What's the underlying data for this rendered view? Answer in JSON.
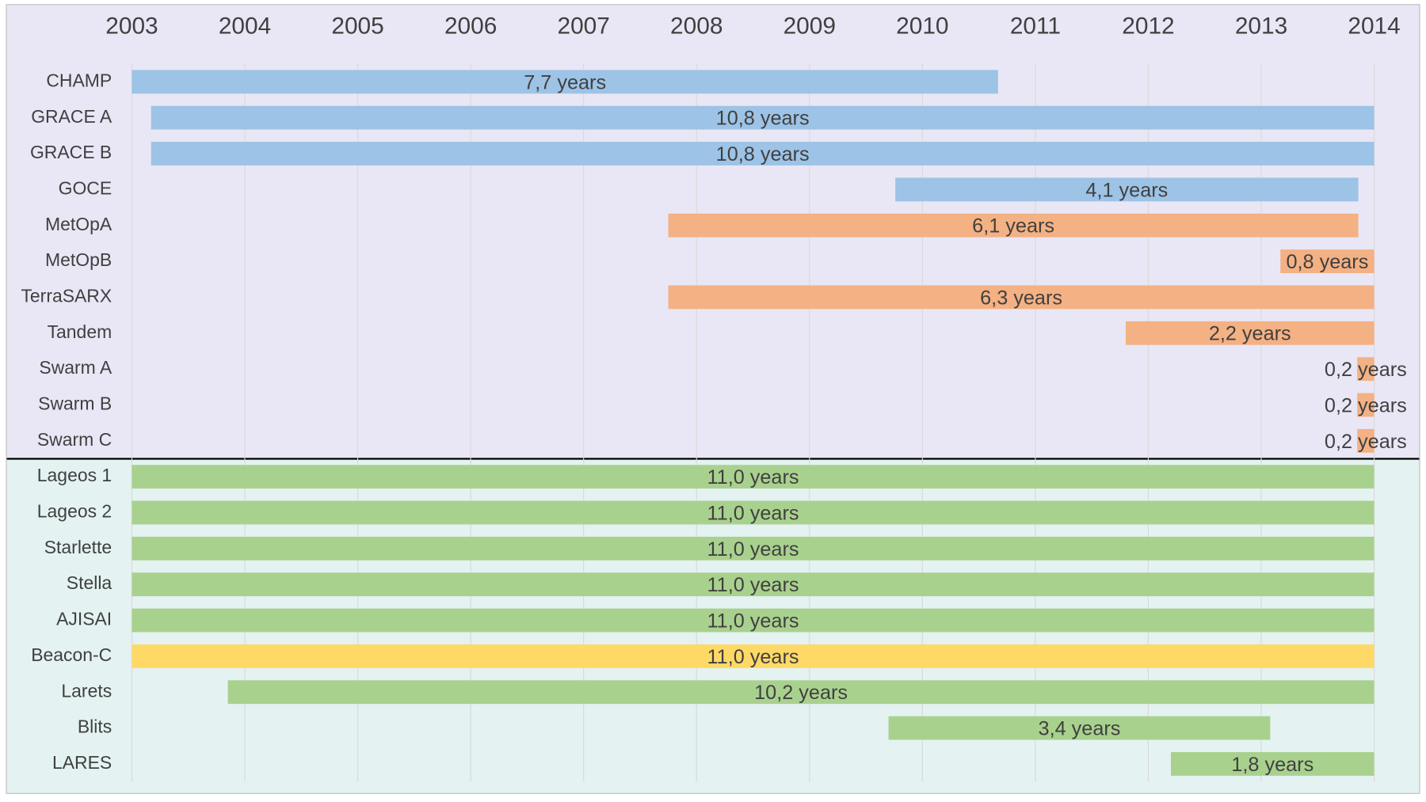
{
  "chart_data": {
    "type": "gantt",
    "xlim": [
      2003,
      2014
    ],
    "xticks": [
      2003,
      2004,
      2005,
      2006,
      2007,
      2008,
      2009,
      2010,
      2011,
      2012,
      2013,
      2014
    ],
    "grid": true,
    "groups": [
      {
        "background": "#e9e7f5",
        "tasks": [
          {
            "name": "CHAMP",
            "start": 2003.0,
            "end": 2010.67,
            "color": "#9dc3e6",
            "label": "7,7 years"
          },
          {
            "name": "GRACE A",
            "start": 2003.17,
            "end": 2014.0,
            "color": "#9dc3e6",
            "label": "10,8 years"
          },
          {
            "name": "GRACE B",
            "start": 2003.17,
            "end": 2014.0,
            "color": "#9dc3e6",
            "label": "10,8 years"
          },
          {
            "name": "GOCE",
            "start": 2009.76,
            "end": 2013.86,
            "color": "#9dc3e6",
            "label": "4,1 years"
          },
          {
            "name": "MetOpA",
            "start": 2007.75,
            "end": 2013.86,
            "color": "#f4b183",
            "label": "6,1 years"
          },
          {
            "name": "MetOpB",
            "start": 2013.17,
            "end": 2014.0,
            "color": "#f4b183",
            "label": "0,8 years"
          },
          {
            "name": "TerraSARX",
            "start": 2007.75,
            "end": 2014.0,
            "color": "#f4b183",
            "label": "6,3 years"
          },
          {
            "name": "Tandem",
            "start": 2011.8,
            "end": 2014.0,
            "color": "#f4b183",
            "label": "2,2 years"
          },
          {
            "name": "Swarm A",
            "start": 2013.85,
            "end": 2014.0,
            "color": "#f4b183",
            "label": "0,2 years"
          },
          {
            "name": "Swarm B",
            "start": 2013.85,
            "end": 2014.0,
            "color": "#f4b183",
            "label": "0,2 years"
          },
          {
            "name": "Swarm C",
            "start": 2013.85,
            "end": 2014.0,
            "color": "#f4b183",
            "label": "0,2 years"
          }
        ]
      },
      {
        "background": "#e4f2f2",
        "tasks": [
          {
            "name": "Lageos 1",
            "start": 2003.0,
            "end": 2014.0,
            "color": "#a9d18e",
            "label": "11,0 years"
          },
          {
            "name": "Lageos 2",
            "start": 2003.0,
            "end": 2014.0,
            "color": "#a9d18e",
            "label": "11,0 years"
          },
          {
            "name": "Starlette",
            "start": 2003.0,
            "end": 2014.0,
            "color": "#a9d18e",
            "label": "11,0 years"
          },
          {
            "name": "Stella",
            "start": 2003.0,
            "end": 2014.0,
            "color": "#a9d18e",
            "label": "11,0 years"
          },
          {
            "name": "AJISAI",
            "start": 2003.0,
            "end": 2014.0,
            "color": "#a9d18e",
            "label": "11,0 years"
          },
          {
            "name": "Beacon-C",
            "start": 2003.0,
            "end": 2014.0,
            "color": "#ffd966",
            "label": "11,0 years"
          },
          {
            "name": "Larets",
            "start": 2003.85,
            "end": 2014.0,
            "color": "#a9d18e",
            "label": "10,2 years"
          },
          {
            "name": "Blits",
            "start": 2009.7,
            "end": 2013.08,
            "color": "#a9d18e",
            "label": "3,4 years"
          },
          {
            "name": "LARES",
            "start": 2012.2,
            "end": 2014.0,
            "color": "#a9d18e",
            "label": "1,8 years"
          }
        ]
      }
    ]
  }
}
